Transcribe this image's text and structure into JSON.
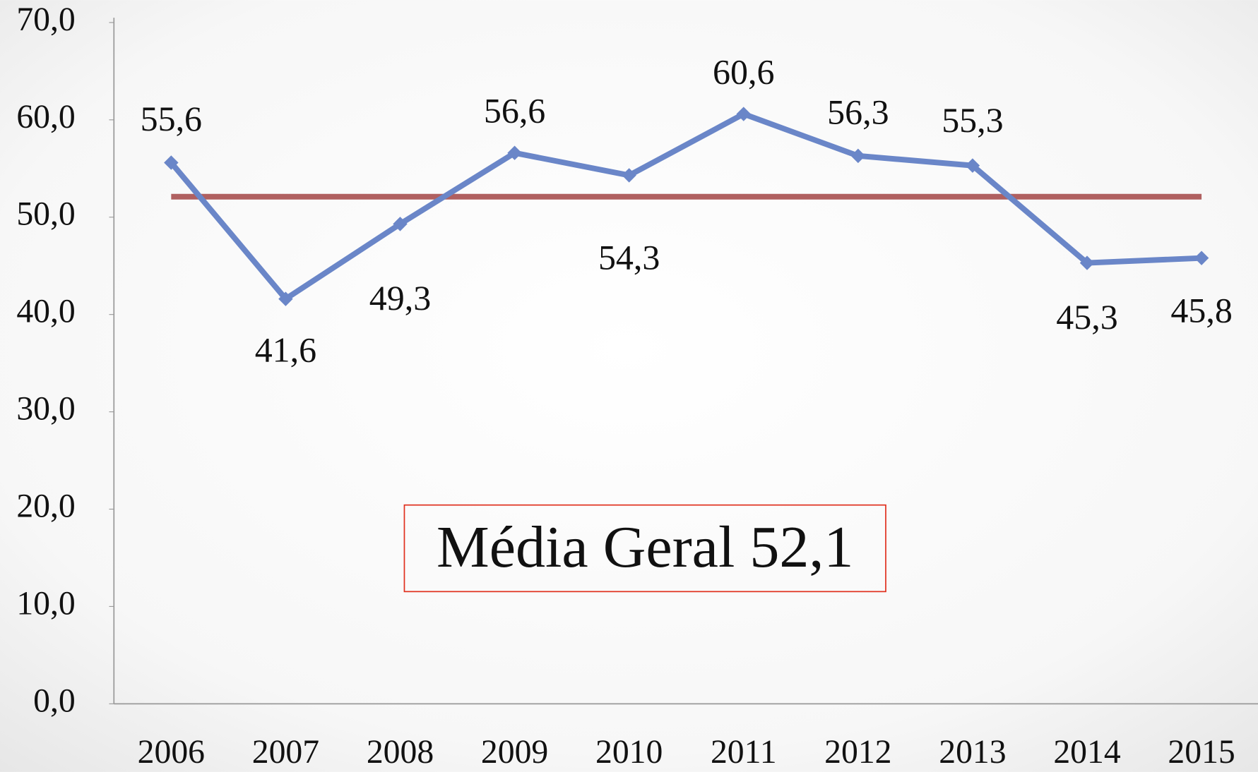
{
  "chart_data": {
    "type": "line",
    "categories": [
      "2006",
      "2007",
      "2008",
      "2009",
      "2010",
      "2011",
      "2012",
      "2013",
      "2014",
      "2015"
    ],
    "series": [
      {
        "color": "#6a86c8",
        "values": [
          55.6,
          41.6,
          49.3,
          56.6,
          54.3,
          60.6,
          56.3,
          55.3,
          45.3,
          45.8
        ],
        "value_labels": [
          "55,6",
          "41,6",
          "49,3",
          "56,6",
          "54,3",
          "60,6",
          "56,3",
          "55,3",
          "45,3",
          "45,8"
        ]
      },
      {
        "color": "#b06060",
        "values": [
          52.1,
          52.1,
          52.1,
          52.1,
          52.1,
          52.1,
          52.1,
          52.1,
          52.1,
          52.1
        ]
      }
    ],
    "ylim": [
      0,
      70
    ],
    "yticks": [
      {
        "value": 0,
        "label": "0,0"
      },
      {
        "value": 10,
        "label": "10,0"
      },
      {
        "value": 20,
        "label": "20,0"
      },
      {
        "value": 30,
        "label": "30,0"
      },
      {
        "value": 40,
        "label": "40,0"
      },
      {
        "value": 50,
        "label": "50,0"
      },
      {
        "value": 60,
        "label": "60,0"
      },
      {
        "value": 70,
        "label": "70,0"
      }
    ],
    "annotation": "Média Geral 52,1"
  }
}
